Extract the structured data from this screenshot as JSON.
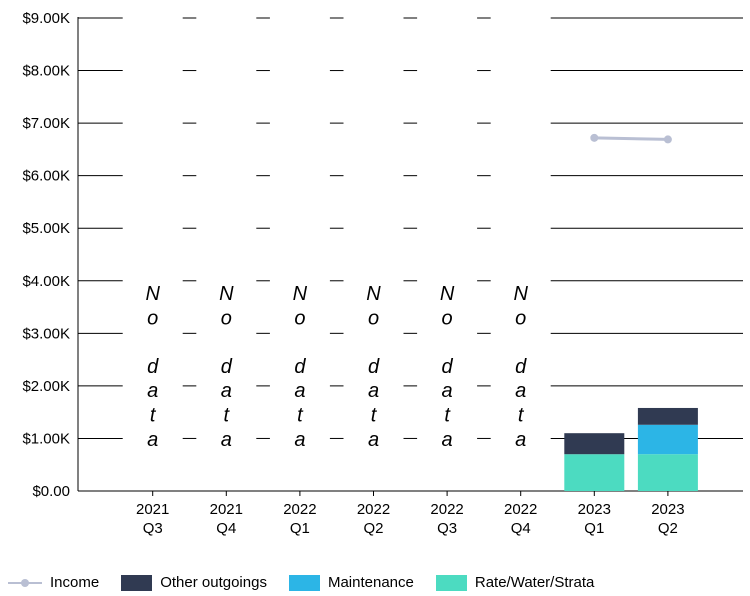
{
  "chart_data": {
    "type": "bar",
    "categories": [
      "2021 Q3",
      "2021 Q4",
      "2022 Q1",
      "2022 Q2",
      "2022 Q3",
      "2022 Q4",
      "2023 Q1",
      "2023 Q2"
    ],
    "category_labels": [
      [
        "2021",
        "Q3"
      ],
      [
        "2021",
        "Q4"
      ],
      [
        "2022",
        "Q1"
      ],
      [
        "2022",
        "Q2"
      ],
      [
        "2022",
        "Q3"
      ],
      [
        "2022",
        "Q4"
      ],
      [
        "2023",
        "Q1"
      ],
      [
        "2023",
        "Q2"
      ]
    ],
    "stacked": true,
    "series": [
      {
        "name": "Rate/Water/Strata",
        "color": "#4cdbc1",
        "values": [
          null,
          null,
          null,
          null,
          null,
          null,
          700,
          700
        ]
      },
      {
        "name": "Maintenance",
        "color": "#2cb5e6",
        "values": [
          null,
          null,
          null,
          null,
          null,
          null,
          0,
          560
        ]
      },
      {
        "name": "Other outgoings",
        "color": "#303a52",
        "values": [
          null,
          null,
          null,
          null,
          null,
          null,
          400,
          320
        ]
      }
    ],
    "line_series": {
      "name": "Income",
      "color": "#b9bfd3",
      "values": [
        null,
        null,
        null,
        null,
        null,
        null,
        6720,
        6690
      ]
    },
    "no_data_text": "No data",
    "no_data_categories": [
      0,
      1,
      2,
      3,
      4,
      5
    ],
    "y_ticks": [
      "$0.00",
      "$1.00K",
      "$2.00K",
      "$3.00K",
      "$4.00K",
      "$5.00K",
      "$6.00K",
      "$7.00K",
      "$8.00K",
      "$9.00K"
    ],
    "ylim": [
      0,
      9000
    ],
    "grid": true,
    "legend_position": "bottom-left",
    "legend": [
      "Income",
      "Other outgoings",
      "Maintenance",
      "Rate/Water/Strata"
    ]
  }
}
